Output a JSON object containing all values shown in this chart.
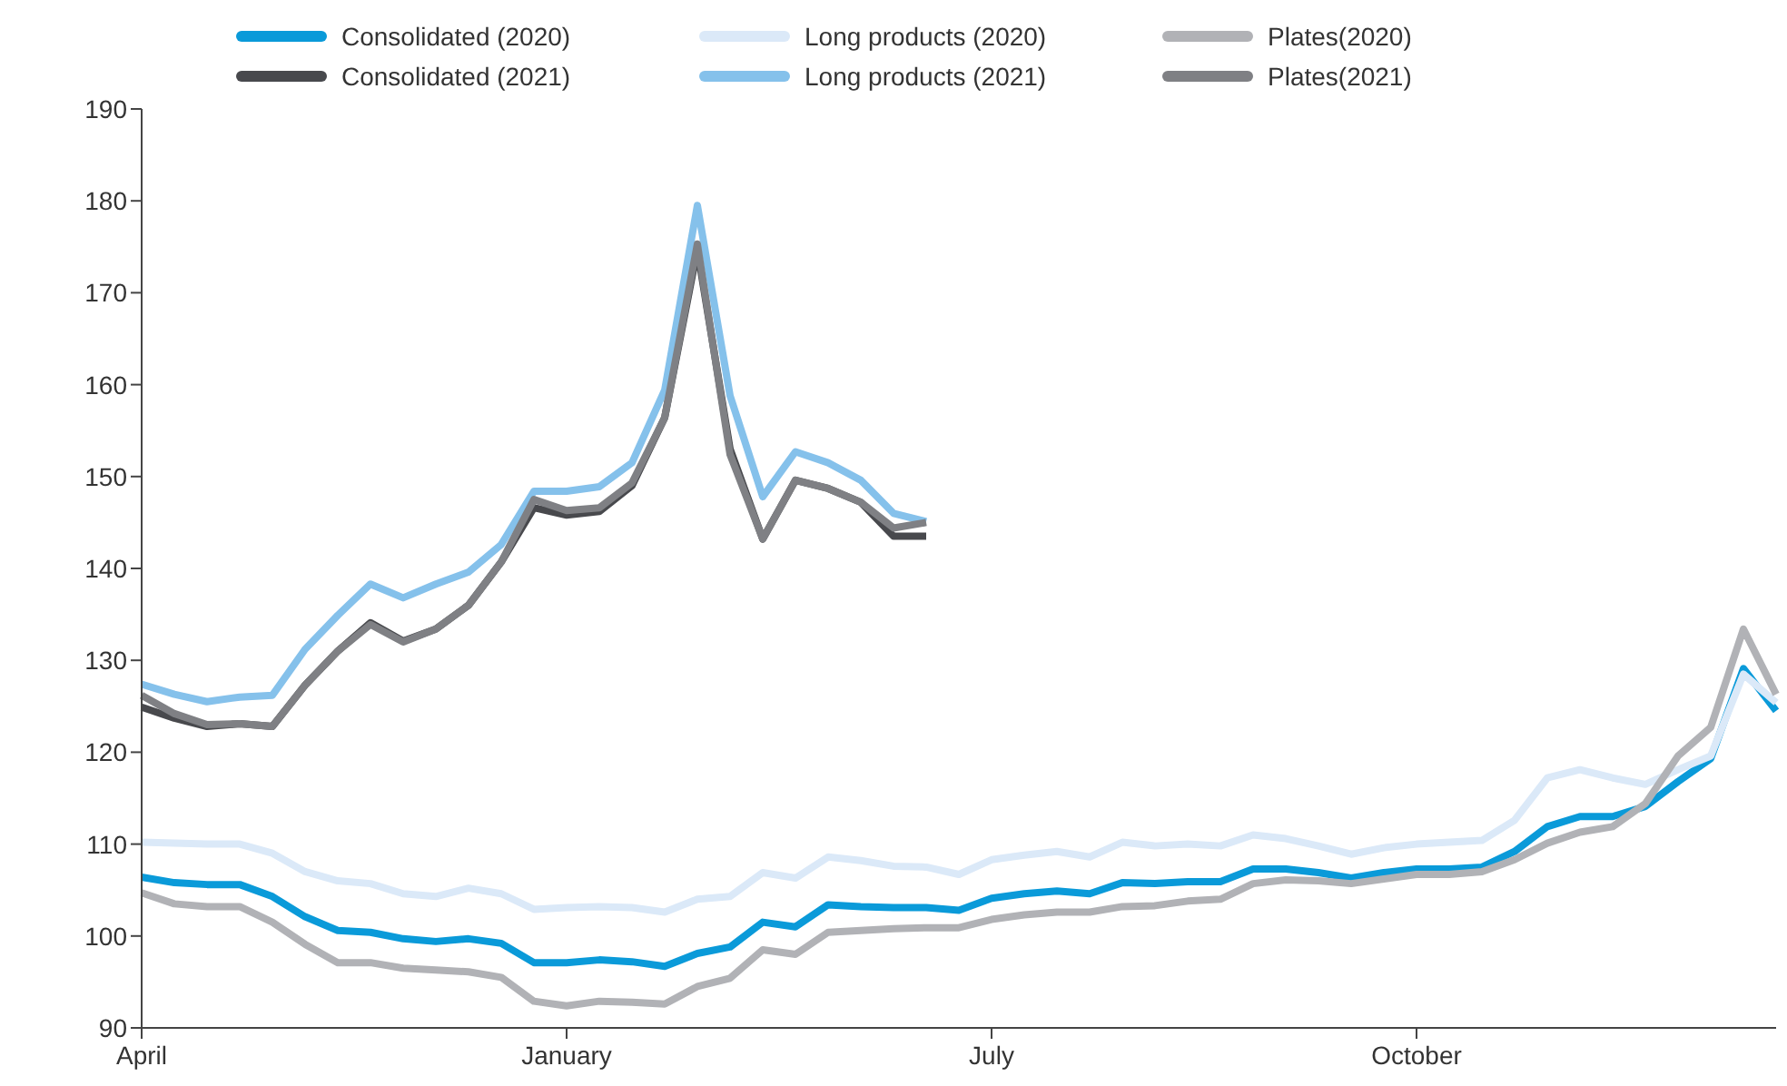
{
  "chart_data": {
    "type": "line",
    "categories": [
      "April",
      null,
      null,
      null,
      null,
      null,
      null,
      null,
      null,
      null,
      null,
      null,
      null,
      "January",
      null,
      null,
      null,
      null,
      null,
      null,
      null,
      null,
      null,
      null,
      null,
      null,
      "July",
      null,
      null,
      null,
      null,
      null,
      null,
      null,
      null,
      null,
      null,
      null,
      null,
      "October",
      null,
      null,
      null,
      null,
      null,
      null,
      null,
      null,
      null,
      null,
      null
    ],
    "ylim": [
      90,
      190
    ],
    "yticks": [
      90,
      100,
      110,
      120,
      130,
      140,
      150,
      160,
      170,
      180,
      190
    ],
    "grid": false,
    "legend": "top",
    "marker": "none",
    "line_style": "solid",
    "series": [
      {
        "name": "Consolidated (2020)",
        "color": "#0a9ad9",
        "values": [
          106.4,
          105.8,
          105.6,
          105.6,
          104.3,
          102.1,
          100.6,
          100.4,
          99.7,
          99.4,
          99.7,
          99.2,
          97.1,
          97.1,
          97.4,
          97.2,
          96.7,
          98.1,
          98.8,
          101.5,
          101.0,
          103.4,
          103.2,
          103.1,
          103.1,
          102.8,
          104.1,
          104.6,
          104.9,
          104.6,
          105.8,
          105.7,
          105.9,
          105.9,
          107.3,
          107.3,
          106.9,
          106.3,
          106.9,
          107.3,
          107.3,
          107.5,
          109.2,
          111.9,
          113.0,
          113.0,
          114.1,
          116.8,
          119.3,
          129.1,
          124.5
        ]
      },
      {
        "name": "Long products (2020)",
        "color": "#dbe9f8",
        "values": [
          110.2,
          110.1,
          110.0,
          110.0,
          109.0,
          107.0,
          106.0,
          105.7,
          104.6,
          104.3,
          105.2,
          104.6,
          102.9,
          103.1,
          103.2,
          103.1,
          102.6,
          104.0,
          104.3,
          106.9,
          106.3,
          108.6,
          108.2,
          107.6,
          107.5,
          106.7,
          108.3,
          108.8,
          109.2,
          108.6,
          110.2,
          109.8,
          110.0,
          109.8,
          111.0,
          110.6,
          109.8,
          108.9,
          109.6,
          110.0,
          110.2,
          110.4,
          112.6,
          117.2,
          118.1,
          117.2,
          116.5,
          118.1,
          119.6,
          128.5,
          125.4
        ]
      },
      {
        "name": "Plates(2020)",
        "color": "#b1b2b6",
        "values": [
          104.7,
          103.5,
          103.2,
          103.2,
          101.5,
          99.1,
          97.1,
          97.1,
          96.5,
          96.3,
          96.1,
          95.5,
          92.9,
          92.4,
          92.9,
          92.8,
          92.6,
          94.5,
          95.4,
          98.5,
          98.0,
          100.4,
          100.6,
          100.8,
          100.9,
          100.9,
          101.8,
          102.3,
          102.6,
          102.6,
          103.2,
          103.3,
          103.8,
          104.0,
          105.7,
          106.1,
          106.0,
          105.7,
          106.2,
          106.7,
          106.7,
          107.0,
          108.3,
          110.1,
          111.3,
          111.9,
          114.4,
          119.6,
          122.7,
          133.4,
          126.3
        ]
      },
      {
        "name": "Consolidated (2021)",
        "color": "#48494d",
        "values": [
          124.9,
          123.7,
          122.8,
          123.1,
          122.8,
          127.3,
          131.0,
          134.1,
          132.1,
          133.4,
          136.0,
          140.7,
          146.6,
          145.8,
          146.2,
          149.0,
          156.4,
          174.7,
          153.0,
          143.2,
          149.6,
          148.7,
          147.2,
          143.5,
          143.5,
          null,
          null,
          null,
          null,
          null,
          null,
          null,
          null,
          null,
          null,
          null,
          null,
          null,
          null,
          null,
          null,
          null,
          null,
          null,
          null,
          null,
          null,
          null,
          null,
          null,
          null
        ]
      },
      {
        "name": "Long products (2021)",
        "color": "#85c1eb",
        "values": [
          127.4,
          126.3,
          125.5,
          126.0,
          126.2,
          131.2,
          134.9,
          138.3,
          136.8,
          138.3,
          139.6,
          142.6,
          148.4,
          148.4,
          148.9,
          151.5,
          159.4,
          179.5,
          158.8,
          147.8,
          152.7,
          151.5,
          149.6,
          146.0,
          145.1,
          null,
          null,
          null,
          null,
          null,
          null,
          null,
          null,
          null,
          null,
          null,
          null,
          null,
          null,
          null,
          null,
          null,
          null,
          null,
          null,
          null,
          null,
          null,
          null,
          null,
          null
        ]
      },
      {
        "name": "Plates(2021)",
        "color": "#7f8084",
        "values": [
          126.2,
          124.2,
          123.0,
          123.1,
          122.8,
          127.3,
          131.0,
          133.9,
          132.0,
          133.4,
          136.0,
          140.7,
          147.5,
          146.3,
          146.6,
          149.3,
          156.4,
          175.3,
          152.4,
          143.2,
          149.6,
          148.7,
          147.2,
          144.4,
          145.0,
          null,
          null,
          null,
          null,
          null,
          null,
          null,
          null,
          null,
          null,
          null,
          null,
          null,
          null,
          null,
          null,
          null,
          null,
          null,
          null,
          null,
          null,
          null,
          null,
          null,
          null
        ]
      }
    ]
  }
}
